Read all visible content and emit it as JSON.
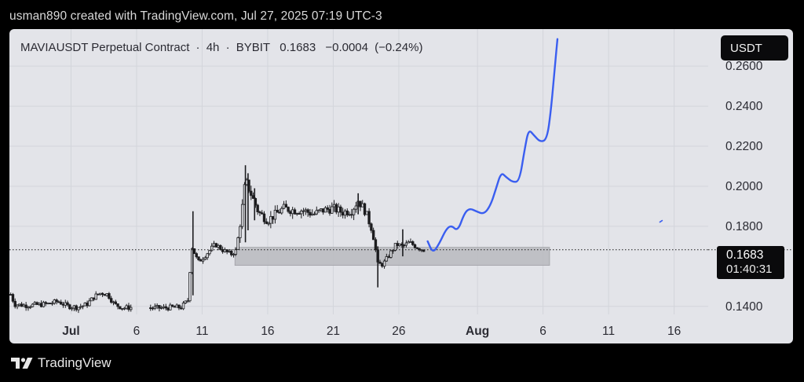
{
  "caption": "usman890 created with TradingView.com, Jul 27, 2025 07:19 UTC-3",
  "header": {
    "symbol": "MAVIAUSDT Perpetual Contract",
    "sep1": "·",
    "interval": "4h",
    "sep2": "·",
    "exchange": "BYBIT",
    "last": "0.1683",
    "change": "−0.0004",
    "change_pct": "(−0.24%)"
  },
  "currency_button": "USDT",
  "price_tag": {
    "price": "0.1683",
    "countdown": "01:40:31"
  },
  "footer": {
    "brand": "TradingView"
  },
  "colors": {
    "plot_bg": "#e3e4e9",
    "candle": "#1c1c1f",
    "projection": "#3a5ef0",
    "zone": "#b9babe",
    "grid": "#d3d5db"
  },
  "icons": [
    "tradingview-logo-icon"
  ],
  "chart_data": {
    "type": "candlestick",
    "y_axis": {
      "ticks": [
        0.14,
        0.18,
        0.2,
        0.22,
        0.24,
        0.26
      ],
      "tick_labels": [
        "0.1400",
        "0.1800",
        "0.2000",
        "0.2200",
        "0.2400",
        "0.2600"
      ],
      "range": [
        0.136,
        0.2785
      ]
    },
    "x_axis": {
      "ticks": [
        {
          "day": 0,
          "label": "Jul"
        },
        {
          "day": 5,
          "label": "6"
        },
        {
          "day": 10,
          "label": "11"
        },
        {
          "day": 15,
          "label": "16"
        },
        {
          "day": 20,
          "label": "21"
        },
        {
          "day": 25,
          "label": "26"
        },
        {
          "day": 31,
          "label": "Aug"
        },
        {
          "day": 36,
          "label": "6"
        },
        {
          "day": 41,
          "label": "11"
        },
        {
          "day": 46,
          "label": "16"
        }
      ],
      "range": [
        -4.7,
        48.6
      ]
    },
    "price_line": 0.1683,
    "support_zone": {
      "start_day": 12.5,
      "end_day": 36.5,
      "low": 0.1605,
      "high": 0.1695
    },
    "close_path": [
      [
        -4.6,
        0.146
      ],
      [
        -4.3,
        0.141
      ],
      [
        -3.5,
        0.1405
      ],
      [
        -2.5,
        0.1408
      ],
      [
        -1.8,
        0.1412
      ],
      [
        -1.0,
        0.1425
      ],
      [
        -0.3,
        0.1402
      ],
      [
        0.5,
        0.1395
      ],
      [
        1.2,
        0.141
      ],
      [
        1.8,
        0.145
      ],
      [
        2.3,
        0.1468
      ],
      [
        2.8,
        0.146
      ],
      [
        3.3,
        0.141
      ],
      [
        4.0,
        0.1392
      ],
      [
        4.6,
        0.1395
      ],
      [
        6.0,
        0.1393
      ],
      [
        7.0,
        0.1392
      ],
      [
        7.7,
        0.1395
      ],
      [
        8.4,
        0.1395
      ],
      [
        8.9,
        0.143
      ],
      [
        9.2,
        0.17
      ],
      [
        9.7,
        0.162
      ],
      [
        10.3,
        0.166
      ],
      [
        11.0,
        0.171
      ],
      [
        11.6,
        0.168
      ],
      [
        12.2,
        0.166
      ],
      [
        12.6,
        0.168
      ],
      [
        13.0,
        0.186
      ],
      [
        13.3,
        0.203
      ],
      [
        13.8,
        0.195
      ],
      [
        14.3,
        0.187
      ],
      [
        15.0,
        0.183
      ],
      [
        15.6,
        0.186
      ],
      [
        16.2,
        0.189
      ],
      [
        17.0,
        0.188
      ],
      [
        17.7,
        0.188
      ],
      [
        18.5,
        0.186
      ],
      [
        19.2,
        0.188
      ],
      [
        20.0,
        0.189
      ],
      [
        20.7,
        0.187
      ],
      [
        21.4,
        0.188
      ],
      [
        21.9,
        0.193
      ],
      [
        22.4,
        0.188
      ],
      [
        23.0,
        0.178
      ],
      [
        23.4,
        0.161
      ],
      [
        23.8,
        0.161
      ],
      [
        24.3,
        0.166
      ],
      [
        24.8,
        0.171
      ],
      [
        25.3,
        0.17
      ],
      [
        25.8,
        0.172
      ],
      [
        26.4,
        0.1695
      ],
      [
        27.0,
        0.168
      ]
    ],
    "spikes": [
      [
        9.3,
        0.1455,
        0.1875
      ],
      [
        13.3,
        0.172,
        0.2105
      ],
      [
        13.5,
        0.178,
        0.2065
      ],
      [
        14.0,
        0.183,
        0.199
      ],
      [
        21.9,
        0.186,
        0.1965
      ],
      [
        23.4,
        0.1495,
        0.17
      ],
      [
        25.3,
        0.165,
        0.1785
      ]
    ],
    "projection": [
      [
        27.2,
        0.1725
      ],
      [
        27.6,
        0.1665
      ],
      [
        28.1,
        0.1715
      ],
      [
        28.6,
        0.1785
      ],
      [
        29.0,
        0.1805
      ],
      [
        29.5,
        0.1775
      ],
      [
        30.0,
        0.1865
      ],
      [
        30.4,
        0.189
      ],
      [
        30.9,
        0.1875
      ],
      [
        31.5,
        0.186
      ],
      [
        32.0,
        0.1905
      ],
      [
        32.4,
        0.1985
      ],
      [
        32.8,
        0.207
      ],
      [
        33.2,
        0.2045
      ],
      [
        33.7,
        0.202
      ],
      [
        34.2,
        0.2025
      ],
      [
        34.6,
        0.2185
      ],
      [
        34.9,
        0.2285
      ],
      [
        35.3,
        0.2255
      ],
      [
        35.8,
        0.222
      ],
      [
        36.3,
        0.2235
      ],
      [
        36.6,
        0.2375
      ],
      [
        36.9,
        0.2595
      ],
      [
        37.1,
        0.2735
      ]
    ],
    "stray_mark": [
      45.0,
      0.1825
    ]
  }
}
